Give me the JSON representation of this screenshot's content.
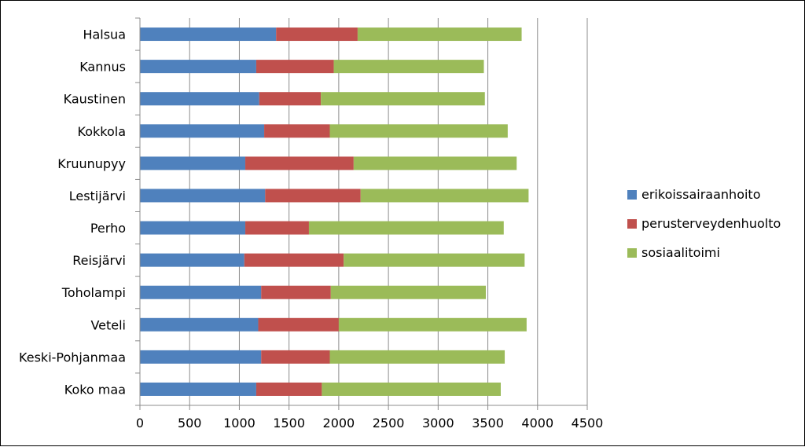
{
  "chart_data": {
    "type": "bar",
    "orientation": "horizontal",
    "stacked": true,
    "title": "",
    "xlabel": "",
    "ylabel": "",
    "categories": [
      "Halsua",
      "Kannus",
      "Kaustinen",
      "Kokkola",
      "Kruunupyy",
      "Lestijärvi",
      "Perho",
      "Reisjärvi",
      "Toholampi",
      "Veteli",
      "Keski-Pohjanmaa",
      "Koko maa"
    ],
    "series": [
      {
        "name": "erikoissairaanhoito",
        "color": "#4F81BD",
        "values": [
          1370,
          1170,
          1200,
          1250,
          1060,
          1260,
          1060,
          1050,
          1220,
          1190,
          1220,
          1170
        ]
      },
      {
        "name": "perusterveydenhuolto",
        "color": "#C0504D",
        "values": [
          820,
          780,
          620,
          660,
          1090,
          960,
          640,
          1000,
          700,
          810,
          690,
          660
        ]
      },
      {
        "name": "sosiaalitoimi",
        "color": "#9BBB59",
        "values": [
          1650,
          1510,
          1650,
          1790,
          1640,
          1690,
          1960,
          1820,
          1560,
          1890,
          1760,
          1800
        ]
      }
    ],
    "xlim": [
      0,
      4500
    ],
    "xticks": [
      "0",
      "500",
      "1000",
      "1500",
      "2000",
      "2500",
      "3000",
      "3500",
      "4000",
      "4500"
    ],
    "grid": "vertical",
    "legend": "right"
  }
}
